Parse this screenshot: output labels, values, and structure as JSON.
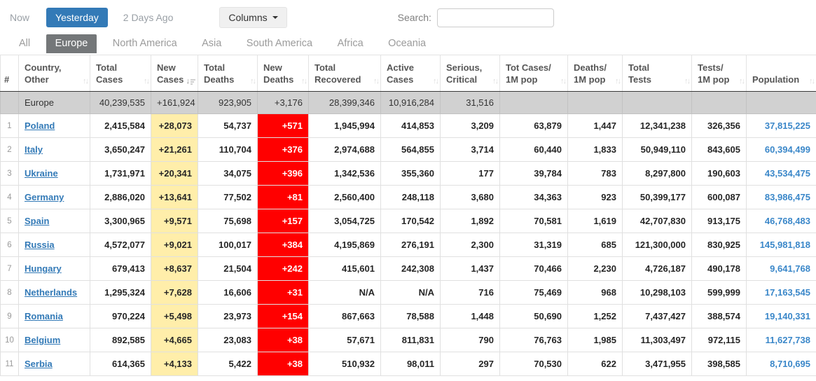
{
  "toolbar": {
    "time_tabs": [
      {
        "label": "Now",
        "active": false
      },
      {
        "label": "Yesterday",
        "active": true
      },
      {
        "label": "2 Days Ago",
        "active": false
      }
    ],
    "columns_button_label": "Columns",
    "search_label": "Search:",
    "search_value": ""
  },
  "continent_tabs": [
    {
      "label": "All",
      "active": false
    },
    {
      "label": "Europe",
      "active": true
    },
    {
      "label": "North America",
      "active": false
    },
    {
      "label": "Asia",
      "active": false
    },
    {
      "label": "South America",
      "active": false
    },
    {
      "label": "Africa",
      "active": false
    },
    {
      "label": "Oceania",
      "active": false
    }
  ],
  "table": {
    "columns": [
      {
        "key": "rank",
        "label": "#",
        "sort": "none",
        "align": "center"
      },
      {
        "key": "country",
        "label": "Country,\nOther",
        "sort": "inactive",
        "align": "left"
      },
      {
        "key": "total_cases",
        "label": "Total\nCases",
        "sort": "inactive",
        "align": "right"
      },
      {
        "key": "new_cases",
        "label": "New\nCases",
        "sort": "active_desc",
        "align": "right",
        "highlight": "yellow"
      },
      {
        "key": "total_deaths",
        "label": "Total\nDeaths",
        "sort": "inactive",
        "align": "right"
      },
      {
        "key": "new_deaths",
        "label": "New\nDeaths",
        "sort": "inactive",
        "align": "right",
        "highlight": "red"
      },
      {
        "key": "total_recovered",
        "label": "Total\nRecovered",
        "sort": "inactive",
        "align": "right"
      },
      {
        "key": "active_cases",
        "label": "Active\nCases",
        "sort": "inactive",
        "align": "right"
      },
      {
        "key": "serious_critical",
        "label": "Serious,\nCritical",
        "sort": "inactive",
        "align": "right"
      },
      {
        "key": "cases_per_1m",
        "label": "Tot Cases/\n1M pop",
        "sort": "inactive",
        "align": "right"
      },
      {
        "key": "deaths_per_1m",
        "label": "Deaths/\n1M pop",
        "sort": "inactive",
        "align": "right"
      },
      {
        "key": "total_tests",
        "label": "Total\nTests",
        "sort": "inactive",
        "align": "right"
      },
      {
        "key": "tests_per_1m",
        "label": "Tests/\n1M pop",
        "sort": "inactive",
        "align": "right"
      },
      {
        "key": "population",
        "label": "Population",
        "sort": "inactive",
        "align": "right",
        "link": true
      }
    ],
    "summary_row": {
      "rank": "",
      "country": "Europe",
      "total_cases": "40,239,535",
      "new_cases": "+161,924",
      "total_deaths": "923,905",
      "new_deaths": "+3,176",
      "total_recovered": "28,399,346",
      "active_cases": "10,916,284",
      "serious_critical": "31,516",
      "cases_per_1m": "",
      "deaths_per_1m": "",
      "total_tests": "",
      "tests_per_1m": "",
      "population": ""
    },
    "rows": [
      {
        "rank": "1",
        "country": "Poland",
        "total_cases": "2,415,584",
        "new_cases": "+28,073",
        "total_deaths": "54,737",
        "new_deaths": "+571",
        "total_recovered": "1,945,994",
        "active_cases": "414,853",
        "serious_critical": "3,209",
        "cases_per_1m": "63,879",
        "deaths_per_1m": "1,447",
        "total_tests": "12,341,238",
        "tests_per_1m": "326,356",
        "population": "37,815,225"
      },
      {
        "rank": "2",
        "country": "Italy",
        "total_cases": "3,650,247",
        "new_cases": "+21,261",
        "total_deaths": "110,704",
        "new_deaths": "+376",
        "total_recovered": "2,974,688",
        "active_cases": "564,855",
        "serious_critical": "3,714",
        "cases_per_1m": "60,440",
        "deaths_per_1m": "1,833",
        "total_tests": "50,949,110",
        "tests_per_1m": "843,605",
        "population": "60,394,499"
      },
      {
        "rank": "3",
        "country": "Ukraine",
        "total_cases": "1,731,971",
        "new_cases": "+20,341",
        "total_deaths": "34,075",
        "new_deaths": "+396",
        "total_recovered": "1,342,536",
        "active_cases": "355,360",
        "serious_critical": "177",
        "cases_per_1m": "39,784",
        "deaths_per_1m": "783",
        "total_tests": "8,297,800",
        "tests_per_1m": "190,603",
        "population": "43,534,475"
      },
      {
        "rank": "4",
        "country": "Germany",
        "total_cases": "2,886,020",
        "new_cases": "+13,641",
        "total_deaths": "77,502",
        "new_deaths": "+81",
        "total_recovered": "2,560,400",
        "active_cases": "248,118",
        "serious_critical": "3,680",
        "cases_per_1m": "34,363",
        "deaths_per_1m": "923",
        "total_tests": "50,399,177",
        "tests_per_1m": "600,087",
        "population": "83,986,475"
      },
      {
        "rank": "5",
        "country": "Spain",
        "total_cases": "3,300,965",
        "new_cases": "+9,571",
        "total_deaths": "75,698",
        "new_deaths": "+157",
        "total_recovered": "3,054,725",
        "active_cases": "170,542",
        "serious_critical": "1,892",
        "cases_per_1m": "70,581",
        "deaths_per_1m": "1,619",
        "total_tests": "42,707,830",
        "tests_per_1m": "913,175",
        "population": "46,768,483"
      },
      {
        "rank": "6",
        "country": "Russia",
        "total_cases": "4,572,077",
        "new_cases": "+9,021",
        "total_deaths": "100,017",
        "new_deaths": "+384",
        "total_recovered": "4,195,869",
        "active_cases": "276,191",
        "serious_critical": "2,300",
        "cases_per_1m": "31,319",
        "deaths_per_1m": "685",
        "total_tests": "121,300,000",
        "tests_per_1m": "830,925",
        "population": "145,981,818"
      },
      {
        "rank": "7",
        "country": "Hungary",
        "total_cases": "679,413",
        "new_cases": "+8,637",
        "total_deaths": "21,504",
        "new_deaths": "+242",
        "total_recovered": "415,601",
        "active_cases": "242,308",
        "serious_critical": "1,437",
        "cases_per_1m": "70,466",
        "deaths_per_1m": "2,230",
        "total_tests": "4,726,187",
        "tests_per_1m": "490,178",
        "population": "9,641,768"
      },
      {
        "rank": "8",
        "country": "Netherlands",
        "total_cases": "1,295,324",
        "new_cases": "+7,628",
        "total_deaths": "16,606",
        "new_deaths": "+31",
        "total_recovered": "N/A",
        "active_cases": "N/A",
        "serious_critical": "716",
        "cases_per_1m": "75,469",
        "deaths_per_1m": "968",
        "total_tests": "10,298,103",
        "tests_per_1m": "599,999",
        "population": "17,163,545"
      },
      {
        "rank": "9",
        "country": "Romania",
        "total_cases": "970,224",
        "new_cases": "+5,498",
        "total_deaths": "23,973",
        "new_deaths": "+154",
        "total_recovered": "867,663",
        "active_cases": "78,588",
        "serious_critical": "1,448",
        "cases_per_1m": "50,690",
        "deaths_per_1m": "1,252",
        "total_tests": "7,437,427",
        "tests_per_1m": "388,574",
        "population": "19,140,331"
      },
      {
        "rank": "10",
        "country": "Belgium",
        "total_cases": "892,585",
        "new_cases": "+4,665",
        "total_deaths": "23,083",
        "new_deaths": "+38",
        "total_recovered": "57,671",
        "active_cases": "811,831",
        "serious_critical": "790",
        "cases_per_1m": "76,763",
        "deaths_per_1m": "1,985",
        "total_tests": "11,303,497",
        "tests_per_1m": "972,115",
        "population": "11,627,738"
      },
      {
        "rank": "11",
        "country": "Serbia",
        "total_cases": "614,365",
        "new_cases": "+4,133",
        "total_deaths": "5,422",
        "new_deaths": "+38",
        "total_recovered": "510,932",
        "active_cases": "98,011",
        "serious_critical": "297",
        "cases_per_1m": "70,530",
        "deaths_per_1m": "622",
        "total_tests": "3,471,955",
        "tests_per_1m": "398,585",
        "population": "8,710,695"
      }
    ]
  },
  "colors": {
    "accent_blue": "#337ab7",
    "country_link_blue": "#337ab7",
    "population_link_blue": "#3a87c9",
    "new_cases_bg": "#ffeeaa",
    "new_deaths_bg": "#ff0000",
    "selected_continent_tab_bg": "#747779",
    "summary_row_bg": "#d1d1d1"
  }
}
